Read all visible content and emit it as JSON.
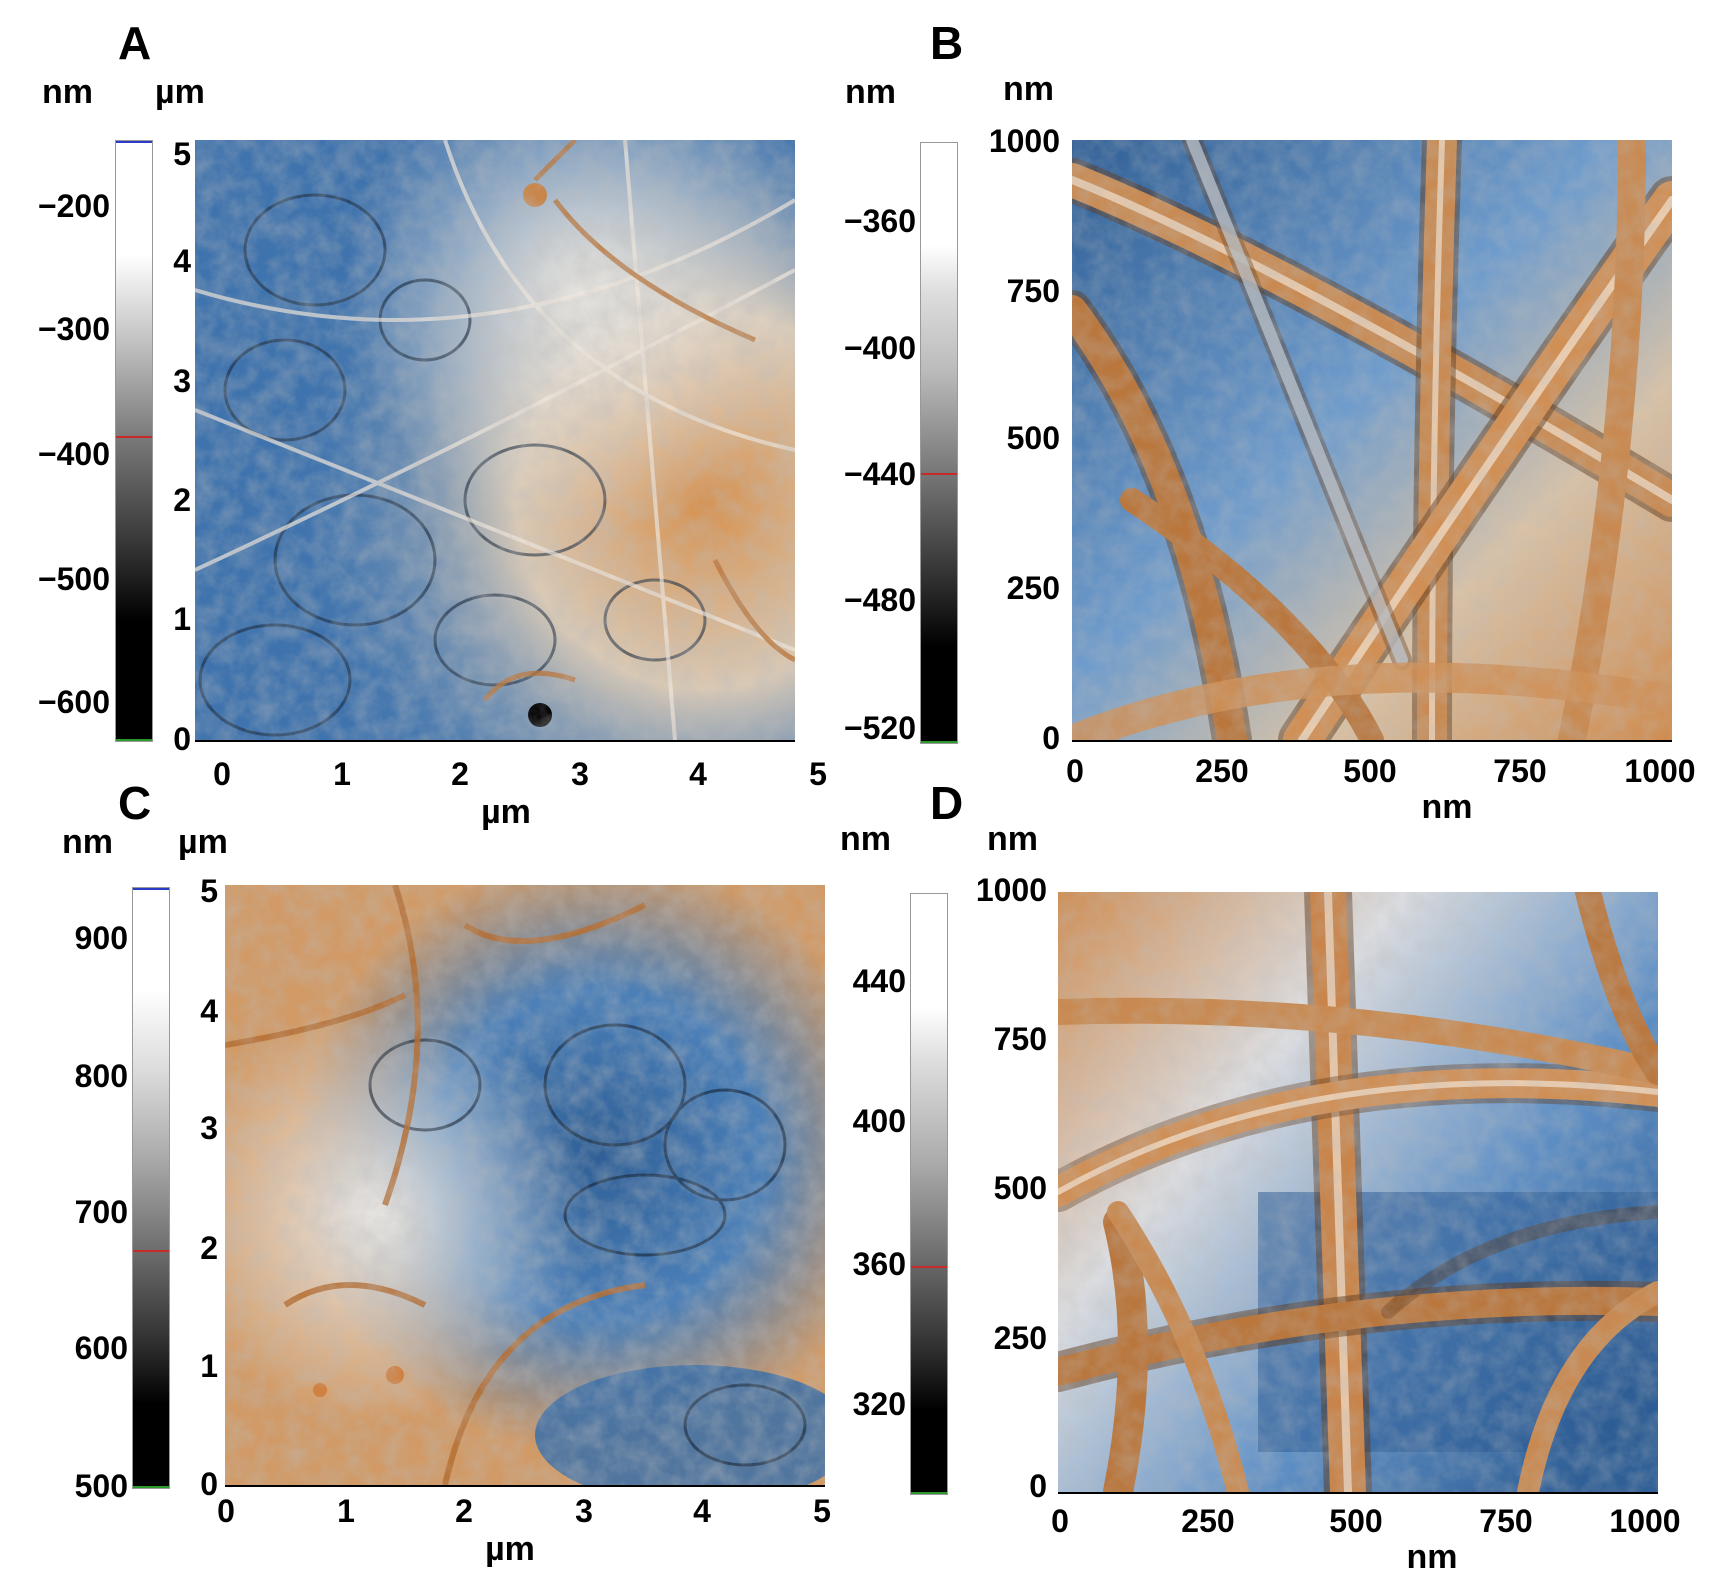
{
  "panels": {
    "A": {
      "label": "A",
      "colorbar_unit": "nm",
      "axis_unit": "µm",
      "colorbar_ticks": [
        "−200",
        "−300",
        "−400",
        "−500",
        "−600"
      ],
      "y_ticks": [
        "5",
        "4",
        "3",
        "2",
        "1",
        "0"
      ],
      "x_ticks": [
        "0",
        "1",
        "2",
        "3",
        "4",
        "5"
      ],
      "x_title": "µm"
    },
    "B": {
      "label": "B",
      "colorbar_unit": "nm",
      "axis_unit": "nm",
      "colorbar_ticks": [
        "−360",
        "−400",
        "−440",
        "−480",
        "−520"
      ],
      "y_ticks": [
        "1000",
        "750",
        "500",
        "250",
        "0"
      ],
      "x_ticks": [
        "0",
        "250",
        "500",
        "750",
        "1000"
      ],
      "x_title": "nm"
    },
    "C": {
      "label": "C",
      "colorbar_unit": "nm",
      "axis_unit": "µm",
      "colorbar_ticks": [
        "900",
        "800",
        "700",
        "600",
        "500"
      ],
      "y_ticks": [
        "5",
        "4",
        "3",
        "2",
        "1",
        "0"
      ],
      "x_ticks": [
        "0",
        "1",
        "2",
        "3",
        "4",
        "5"
      ],
      "x_title": "µm"
    },
    "D": {
      "label": "D",
      "colorbar_unit": "nm",
      "axis_unit": "nm",
      "colorbar_ticks": [
        "440",
        "400",
        "360",
        "320"
      ],
      "y_ticks": [
        "1000",
        "750",
        "500",
        "250",
        "0"
      ],
      "x_ticks": [
        "0",
        "250",
        "500",
        "750",
        "1000"
      ],
      "x_title": "nm"
    }
  },
  "colors": {
    "blue_phase": "#4a7fb8",
    "brown_phase": "#c8864a",
    "light_phase": "#e8ecef",
    "dark_phase": "#101820"
  }
}
